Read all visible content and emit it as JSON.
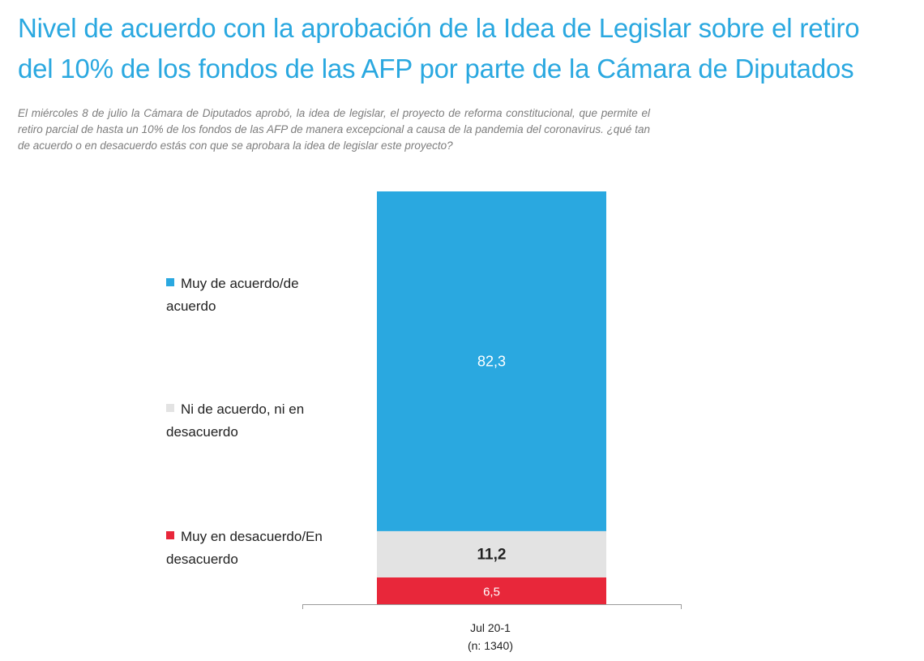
{
  "title_line1": "Nivel de acuerdo con la aprobación de la Idea de Legislar sobre el retiro",
  "title_line2": "del 10% de los fondos de las AFP por parte de la Cámara de Diputados",
  "subtitle": "El miércoles 8 de julio la Cámara de Diputados aprobó, la idea de legislar, el proyecto de reforma constitucional, que permite el retiro parcial de hasta un 10% de los fondos de las AFP de manera excepcional a causa de la pandemia del coronavirus. ¿qué tan de acuerdo o en desacuerdo estás con que se aprobara la idea de legislar este proyecto?",
  "chart_data": {
    "type": "bar",
    "stacked": true,
    "categories": [
      "Jul 20-1"
    ],
    "category_note": "(n: 1340)",
    "series": [
      {
        "name": "Muy en desacuerdo/En desacuerdo",
        "values": [
          6.5
        ],
        "label": "6,5",
        "color": "#e8273a",
        "label_color": "#ffffff"
      },
      {
        "name": "Ni de acuerdo, ni en desacuerdo",
        "values": [
          11.2
        ],
        "label": "11,2",
        "color": "#e3e3e3",
        "label_color": "#222222"
      },
      {
        "name": "Muy de acuerdo/de acuerdo",
        "values": [
          82.3
        ],
        "label": "82,3",
        "color": "#2aa8e0",
        "label_color": "#ffffff"
      }
    ],
    "legend": [
      {
        "line1": "Muy de acuerdo/de",
        "line2": "acuerdo",
        "color": "#2aa8e0"
      },
      {
        "line1": "Ni de acuerdo, ni en",
        "line2": "desacuerdo",
        "color": "#e3e3e3"
      },
      {
        "line1": "Muy en desacuerdo/En",
        "line2": "desacuerdo",
        "color": "#e8273a"
      }
    ],
    "legend_placement": "left",
    "ylim": [
      0,
      100
    ],
    "grid": false
  }
}
